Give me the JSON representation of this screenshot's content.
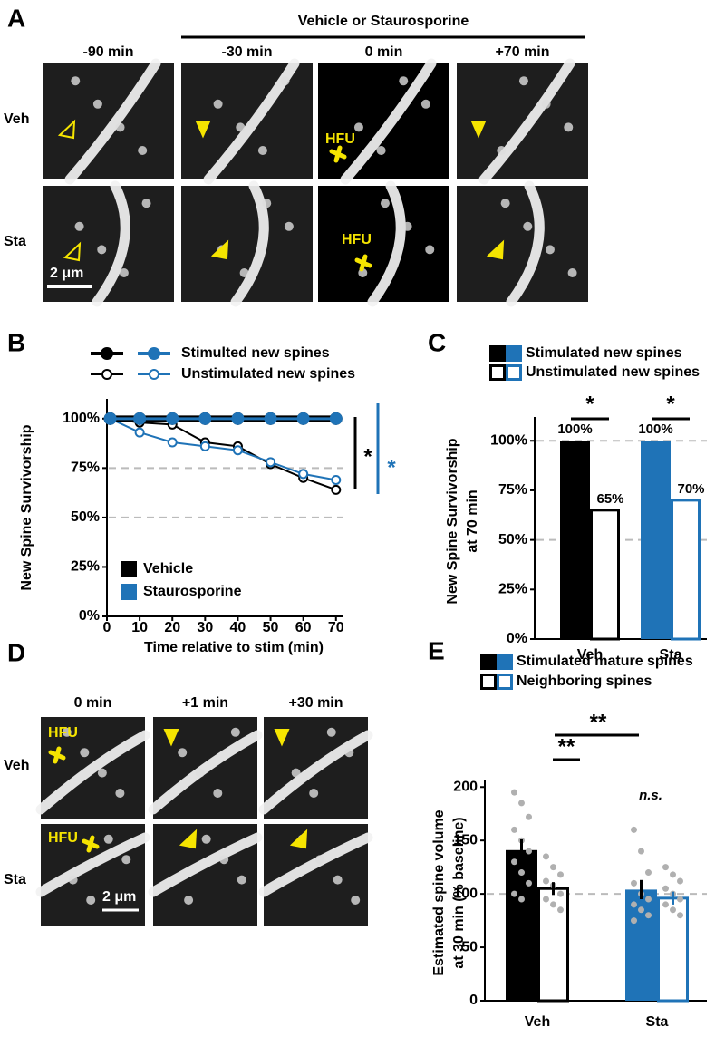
{
  "panel_a": {
    "label": "A",
    "header": "Vehicle or Staurosporine",
    "columns": [
      "-90 min",
      "-30 min",
      "0 min",
      "+70 min"
    ],
    "rows": [
      "Veh",
      "Sta"
    ],
    "stim_label": "HFU",
    "scale_bar": "2 μm"
  },
  "panel_d": {
    "label": "D",
    "columns": [
      "0 min",
      "+1 min",
      "+30 min"
    ],
    "rows": [
      "Veh",
      "Sta"
    ],
    "stim_label": "HFU",
    "scale_bar": "2 μm"
  },
  "chart_data": [
    {
      "type": "line",
      "panel": "B",
      "ylabel": "New Spine Survivorship",
      "xlabel": "Time relative to stim (min)",
      "x": [
        1,
        10,
        20,
        30,
        40,
        50,
        60,
        70
      ],
      "series": [
        {
          "color": "#000000",
          "filled": true,
          "values": [
            100,
            100,
            100,
            100,
            100,
            100,
            100,
            100
          ]
        },
        {
          "color": "#1f73b7",
          "filled": true,
          "values": [
            100,
            100,
            100,
            100,
            100,
            100,
            100,
            100
          ]
        },
        {
          "color": "#000000",
          "filled": false,
          "values": [
            100,
            98,
            97,
            88,
            86,
            77,
            70,
            64
          ]
        },
        {
          "color": "#1f73b7",
          "filled": false,
          "values": [
            100,
            93,
            88,
            86,
            84,
            78,
            72,
            69
          ]
        }
      ],
      "legend_styles": [
        "Stimulted new spines",
        "Unstimulated new spines"
      ],
      "legend_colors": [
        {
          "label": "Vehicle",
          "color": "#000000"
        },
        {
          "label": "Staurosporine",
          "color": "#1f73b7"
        }
      ],
      "annotations": [
        {
          "text": "*",
          "color": "#000000"
        },
        {
          "text": "*",
          "color": "#1f73b7"
        }
      ],
      "xlim": [
        0,
        72
      ],
      "xticks": [
        0,
        10,
        20,
        30,
        40,
        50,
        60,
        70
      ],
      "ylim": [
        0,
        110
      ],
      "yticks": [
        {
          "value": 0,
          "label": "0%"
        },
        {
          "value": 25,
          "label": "25%"
        },
        {
          "value": 50,
          "label": "50%"
        },
        {
          "value": 75,
          "label": "75%"
        },
        {
          "value": 100,
          "label": "100%"
        }
      ],
      "grid": [
        50,
        75
      ]
    },
    {
      "type": "bar",
      "panel": "C",
      "ylabel": [
        "New Spine Survivorship",
        "at 70 min"
      ],
      "categories": [
        "Veh",
        "Sta"
      ],
      "series": [
        {
          "name": "Stimulated new spines",
          "solid": true,
          "colors": [
            "#000000",
            "#1f73b7"
          ],
          "values": [
            100,
            100
          ],
          "value_labels": [
            "100%",
            "100%"
          ]
        },
        {
          "name": "Unstimulated new spines",
          "solid": false,
          "colors": [
            "#000000",
            "#1f73b7"
          ],
          "values": [
            65,
            70
          ],
          "value_labels": [
            "65%",
            "70%"
          ]
        }
      ],
      "annotations": [
        {
          "text": "*"
        },
        {
          "text": "*"
        }
      ],
      "ylim": [
        0,
        112
      ],
      "yticks": [
        {
          "value": 0,
          "label": "0%"
        },
        {
          "value": 25,
          "label": "25%"
        },
        {
          "value": 50,
          "label": "50%"
        },
        {
          "value": 75,
          "label": "75%"
        },
        {
          "value": 100,
          "label": "100%"
        }
      ],
      "grid": [
        50,
        100
      ]
    },
    {
      "type": "bar",
      "panel": "E",
      "ylabel": [
        "Estimated spine volume",
        "at 30 min (% baseline)"
      ],
      "categories": [
        "Veh",
        "Sta"
      ],
      "series": [
        {
          "name": "Stimulated mature spines",
          "solid": true,
          "colors": [
            "#000000",
            "#1f73b7"
          ],
          "values": [
            141,
            104
          ],
          "errors": [
            10,
            9
          ],
          "points": [
            [
              195,
              185,
              172,
              160,
              150,
              140,
              130,
              120,
              110,
              100,
              95
            ],
            [
              160,
              140,
              120,
              110,
              100,
              95,
              90,
              85,
              80,
              75
            ]
          ]
        },
        {
          "name": "Neighboring spines",
          "solid": false,
          "colors": [
            "#000000",
            "#1f73b7"
          ],
          "values": [
            105,
            96
          ],
          "errors": [
            6,
            6
          ],
          "points": [
            [
              135,
              125,
              118,
              112,
              108,
              100,
              95,
              90,
              85
            ],
            [
              125,
              118,
              112,
              105,
              100,
              95,
              90,
              85,
              80
            ]
          ]
        }
      ],
      "annotations": [
        {
          "text": "**"
        },
        {
          "text": "**"
        },
        {
          "text": "n.s."
        }
      ],
      "ylim": [
        0,
        207
      ],
      "yticks": [
        0,
        50,
        100,
        150,
        200
      ],
      "grid": [
        100
      ]
    }
  ]
}
